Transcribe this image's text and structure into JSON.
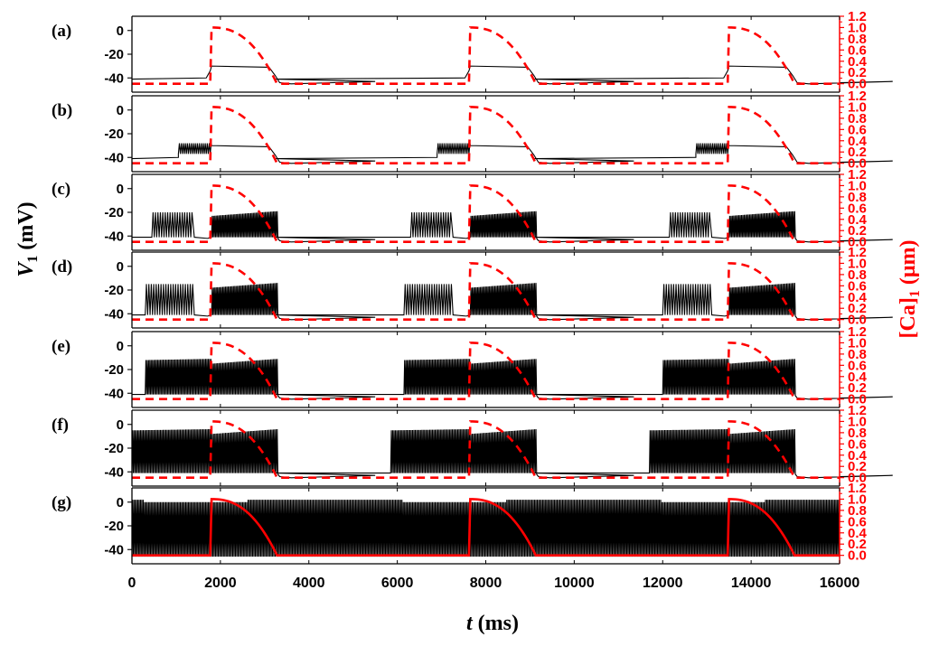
{
  "chart_data": {
    "type": "line",
    "xlabel": {
      "italic": "t",
      "rest": " (ms)"
    },
    "ylabel_left": {
      "italic": "V",
      "sub": "1",
      "rest": " (mV)"
    },
    "ylabel_right": {
      "pre": "[Ca]",
      "sub": "1",
      "rest": " (μm)"
    },
    "xlim": [
      0,
      16000
    ],
    "x_ticks": [
      0,
      2000,
      4000,
      6000,
      8000,
      10000,
      12000,
      14000,
      16000
    ],
    "x_tick_labels": [
      "0",
      "2000",
      "4000",
      "6000",
      "8000",
      "10000",
      "12000",
      "14000",
      "16000"
    ],
    "ylim_left": [
      -52,
      12
    ],
    "y_ticks_left": [
      0,
      -20,
      -40
    ],
    "y_tick_labels_left": [
      "0",
      "-20",
      "-40"
    ],
    "ylim_right": [
      -0.15,
      1.2
    ],
    "y_ticks_right": [
      0.0,
      0.2,
      0.4,
      0.6,
      0.8,
      1.0,
      1.2
    ],
    "y_tick_labels_right": [
      "0.0",
      "0.2",
      "0.4",
      "0.6",
      "0.8",
      "1.0",
      "1.2"
    ],
    "colors": {
      "voltage": "#000000",
      "calcium": "#ff0000",
      "axis_right": "#ff0000"
    },
    "period_ms": 5850,
    "calcium_rise_ms": [
      1800,
      7650,
      13500
    ],
    "calcium_peak": 1.0,
    "calcium_baseline": 0.0,
    "panels": [
      {
        "label": "(a)",
        "burst_type": "plateau",
        "burst_start_ms": null,
        "burst_end_ms": 3300,
        "plateau_mV": -30,
        "spike_top_mV": null,
        "calcium_style": "dashed"
      },
      {
        "label": "(b)",
        "burst_type": "pre-spiking + plateau",
        "burst_start_ms": 1050,
        "burst_end_ms": 3300,
        "plateau_mV": -30,
        "spike_top_mV": -28,
        "calcium_style": "dashed"
      },
      {
        "label": "(c)",
        "burst_type": "spiking",
        "burst_start_ms": 450,
        "burst_end_ms": 3300,
        "plateau_mV": null,
        "spike_top_mV": -20,
        "calcium_style": "dashed"
      },
      {
        "label": "(d)",
        "burst_type": "spiking",
        "burst_start_ms": 300,
        "burst_end_ms": 3300,
        "plateau_mV": null,
        "spike_top_mV": -15,
        "calcium_style": "dashed"
      },
      {
        "label": "(e)",
        "burst_type": "spiking",
        "burst_start_ms": 300,
        "burst_end_ms": 3300,
        "plateau_mV": null,
        "spike_top_mV": -12,
        "calcium_style": "dashed"
      },
      {
        "label": "(f)",
        "burst_type": "spiking",
        "burst_start_ms": 0,
        "burst_end_ms": 3300,
        "plateau_mV": null,
        "spike_top_mV": -5,
        "calcium_style": "dashed"
      },
      {
        "label": "(g)",
        "burst_type": "continuous spiking",
        "burst_start_ms": 0,
        "burst_end_ms": 16000,
        "plateau_mV": null,
        "spike_top_mV": 2,
        "calcium_style": "solid"
      }
    ]
  }
}
